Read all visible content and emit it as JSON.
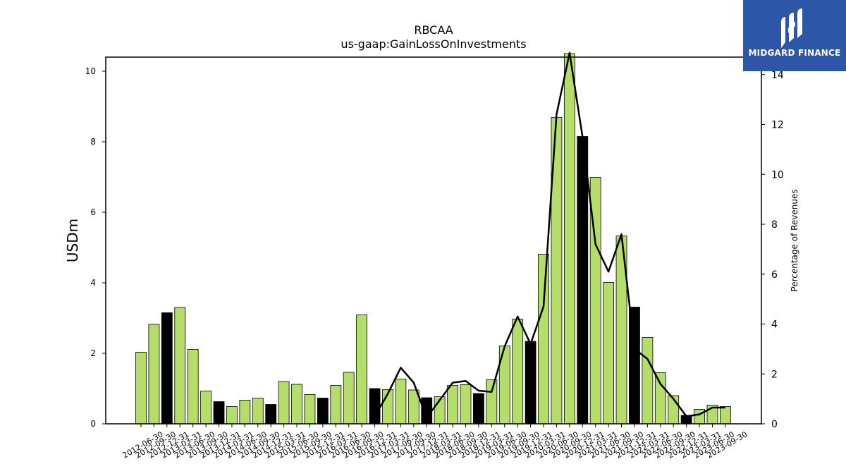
{
  "chart_data": {
    "type": "bar",
    "title": "RBCAA",
    "subtitle": "us-gaap:GainLossOnInvestments",
    "ylabel": "USDm",
    "y2label": "Percentage of Revenues",
    "ylim": [
      0,
      10.4
    ],
    "y2lim": [
      0,
      14.7
    ],
    "yticks": [
      0,
      2,
      4,
      6,
      8,
      10
    ],
    "y2ticks": [
      0,
      2,
      4,
      6,
      8,
      10,
      12,
      14
    ],
    "grid": false,
    "legend": "none",
    "colors": {
      "bar_default": "#b5dd69",
      "bar_highlight": "#000000",
      "line": "#000000"
    },
    "categories": [
      "2012-06-30",
      "2012-09-30",
      "2012-12-31",
      "2013-03-31",
      "2013-06-30",
      "2013-09-30",
      "2013-12-31",
      "2014-03-31",
      "2014-06-30",
      "2014-09-30",
      "2014-12-31",
      "2015-03-31",
      "2015-06-30",
      "2015-09-30",
      "2015-12-31",
      "2016-03-31",
      "2016-06-30",
      "2016-09-30",
      "2016-12-31",
      "2017-03-31",
      "2017-06-30",
      "2017-09-30",
      "2017-12-31",
      "2018-03-31",
      "2018-06-30",
      "2018-09-30",
      "2018-12-31",
      "2019-03-31",
      "2019-06-30",
      "2019-09-30",
      "2019-12-31",
      "2020-03-31",
      "2020-06-30",
      "2020-09-30",
      "2020-12-31",
      "2021-03-31",
      "2021-06-30",
      "2021-09-30",
      "2021-12-31",
      "2022-03-31",
      "2022-06-30",
      "2022-09-30",
      "2022-12-31",
      "2023-03-31",
      "2023-06-30",
      "2023-09-30"
    ],
    "series": [
      {
        "type": "bar",
        "values": [
          2.03,
          2.82,
          3.15,
          3.3,
          2.11,
          0.93,
          0.63,
          0.49,
          0.67,
          0.73,
          0.55,
          1.2,
          1.12,
          0.83,
          0.73,
          1.09,
          1.46,
          3.09,
          1.0,
          0.97,
          1.27,
          0.96,
          0.74,
          0.77,
          1.09,
          1.11,
          0.86,
          1.25,
          2.21,
          2.97,
          2.34,
          4.81,
          8.69,
          10.5,
          8.15,
          6.99,
          4.01,
          5.33,
          3.31,
          2.45,
          1.45,
          0.8,
          0.24,
          0.41,
          0.53,
          0.49
        ],
        "highlight": [
          false,
          false,
          true,
          false,
          false,
          false,
          true,
          false,
          false,
          false,
          true,
          false,
          false,
          false,
          true,
          false,
          false,
          false,
          true,
          false,
          false,
          false,
          true,
          false,
          false,
          false,
          true,
          false,
          false,
          false,
          true,
          false,
          false,
          false,
          true,
          false,
          false,
          false,
          true,
          false,
          false,
          false,
          true,
          false,
          false,
          false
        ]
      },
      {
        "type": "line",
        "axis": "right",
        "values": [
          null,
          null,
          null,
          null,
          null,
          null,
          null,
          null,
          null,
          null,
          null,
          null,
          null,
          null,
          null,
          null,
          null,
          null,
          0.3,
          1.2,
          2.25,
          1.65,
          0.25,
          0.95,
          1.65,
          1.72,
          1.33,
          1.28,
          3.1,
          4.3,
          3.2,
          4.7,
          12.4,
          15.2,
          11.5,
          7.2,
          6.1,
          7.6,
          3.0,
          2.6,
          1.6,
          1.0,
          0.3,
          0.38,
          0.65,
          0.65
        ]
      }
    ]
  },
  "logo": {
    "text": "MIDGARD FINANCE"
  }
}
